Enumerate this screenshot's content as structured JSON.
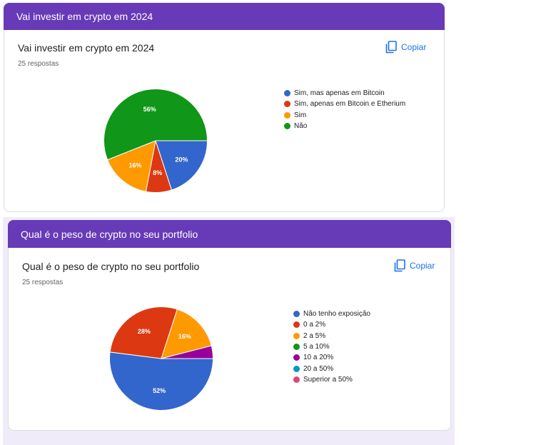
{
  "copy_label": "Copiar",
  "questions": [
    {
      "header_title": "Vai investir em crypto em 2024",
      "title": "Vai investir em crypto em 2024",
      "responses": "25 respostas",
      "legend": [
        {
          "label": "Sim, mas apenas em Bitcoin",
          "color": "#3366cc"
        },
        {
          "label": "Sim, apenas em Bitcoin e Etherium",
          "color": "#dc3912"
        },
        {
          "label": "Sim",
          "color": "#ff9900"
        },
        {
          "label": "Não",
          "color": "#109618"
        }
      ]
    },
    {
      "header_title": "Qual é o peso de crypto no seu portfolio",
      "title": "Qual é o peso de crypto no seu portfolio",
      "responses": "25 respostas",
      "legend": [
        {
          "label": "Não tenho exposição",
          "color": "#3366cc"
        },
        {
          "label": "0 a 2%",
          "color": "#dc3912"
        },
        {
          "label": "2 a 5%",
          "color": "#ff9900"
        },
        {
          "label": "5 a 10%",
          "color": "#109618"
        },
        {
          "label": "10 a 20%",
          "color": "#990099"
        },
        {
          "label": "20 a 50%",
          "color": "#0099c6"
        },
        {
          "label": "Superior a 50%",
          "color": "#dd4477"
        }
      ]
    }
  ],
  "chart_data": [
    {
      "type": "pie",
      "title": "Vai investir em crypto em 2024",
      "categories": [
        "Sim, mas apenas em Bitcoin",
        "Sim, apenas em Bitcoin e Etherium",
        "Sim",
        "Não"
      ],
      "values": [
        20,
        8,
        16,
        56
      ],
      "data_labels": [
        "20%",
        "8%",
        "16%",
        "56%"
      ],
      "colors": [
        "#3366cc",
        "#dc3912",
        "#ff9900",
        "#109618"
      ],
      "legend": "right"
    },
    {
      "type": "pie",
      "title": "Qual é o peso de crypto no seu portfolio",
      "categories": [
        "Não tenho exposição",
        "0 a 2%",
        "2 a 5%",
        "5 a 10%",
        "10 a 20%",
        "20 a 50%",
        "Superior a 50%"
      ],
      "values": [
        52,
        28,
        16,
        0,
        4,
        0,
        0
      ],
      "data_labels": [
        "52%",
        "28%",
        "16%",
        "",
        "",
        "",
        ""
      ],
      "colors": [
        "#3366cc",
        "#dc3912",
        "#ff9900",
        "#109618",
        "#990099",
        "#0099c6",
        "#dd4477"
      ],
      "legend": "right"
    }
  ]
}
